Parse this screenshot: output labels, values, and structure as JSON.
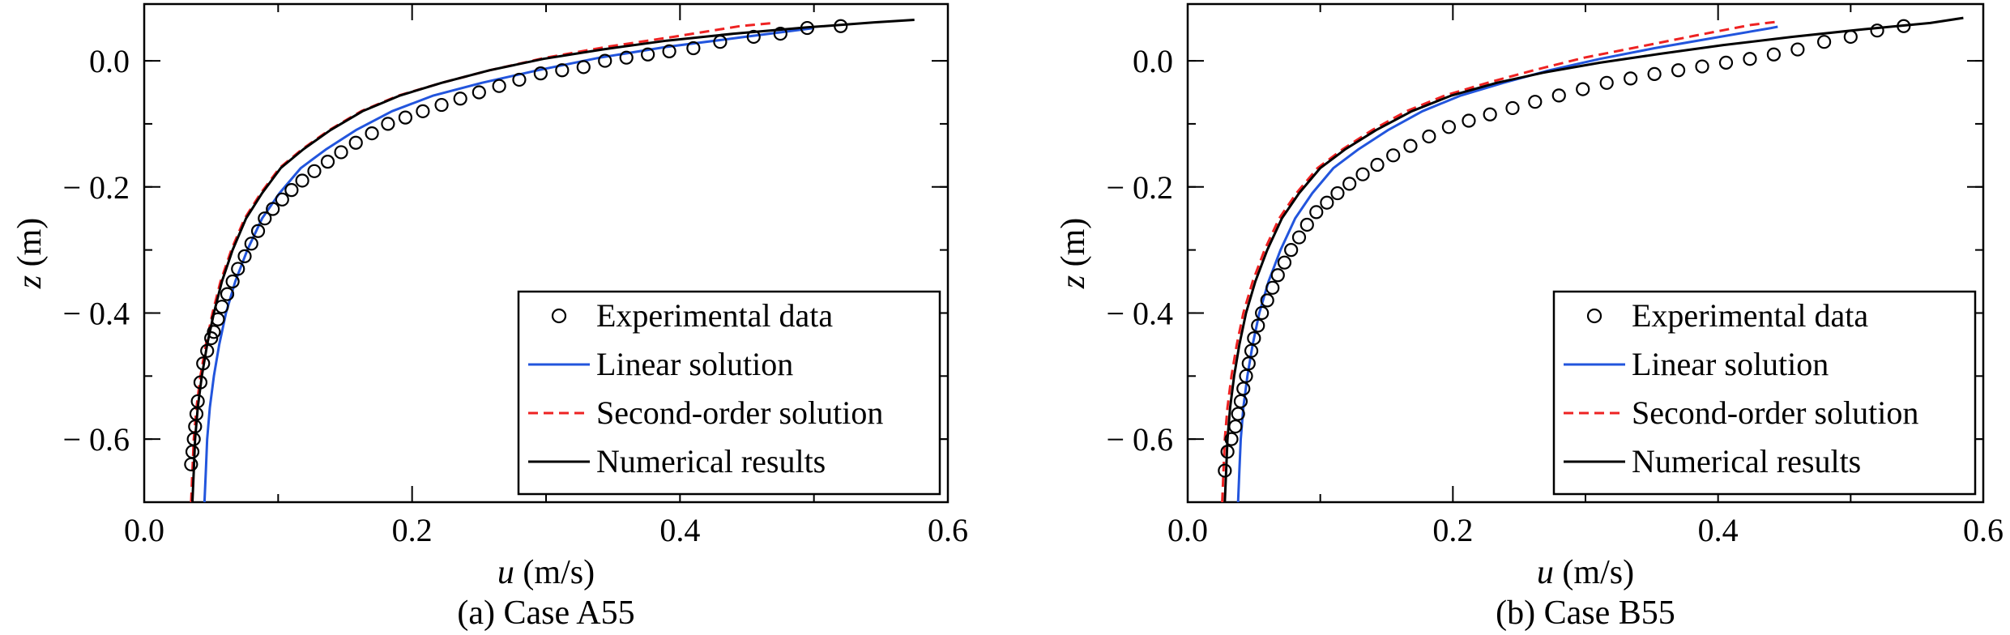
{
  "chart_data": [
    {
      "type": "line",
      "caption": "(a) Case A55",
      "xlabel": {
        "var": "u",
        "unit": " (m/s)"
      },
      "ylabel": {
        "var": "z",
        "unit": " (m)"
      },
      "xlim": [
        0.0,
        0.6
      ],
      "ylim": [
        -0.7,
        0.09
      ],
      "invert_y_labels": true,
      "x_ticks": [
        0.0,
        0.2,
        0.4,
        0.6
      ],
      "x_tick_labels": [
        "0.0",
        "0.2",
        "0.4",
        "0.6"
      ],
      "y_ticks": [
        0.0,
        -0.2,
        -0.4,
        -0.6
      ],
      "y_tick_labels": [
        "0.0",
        "− 0.2",
        "− 0.4",
        "− 0.6"
      ],
      "legend_position": "lower-right",
      "series": [
        {
          "name": "Experimental data",
          "style": "marker-circle",
          "color": "#000000",
          "x": [
            0.035,
            0.036,
            0.037,
            0.038,
            0.039,
            0.04,
            0.042,
            0.044,
            0.047,
            0.05,
            0.052,
            0.055,
            0.058,
            0.062,
            0.066,
            0.07,
            0.075,
            0.08,
            0.085,
            0.09,
            0.096,
            0.103,
            0.11,
            0.118,
            0.127,
            0.137,
            0.147,
            0.158,
            0.17,
            0.182,
            0.195,
            0.208,
            0.222,
            0.236,
            0.25,
            0.265,
            0.28,
            0.296,
            0.312,
            0.328,
            0.344,
            0.36,
            0.376,
            0.392,
            0.41,
            0.43,
            0.455,
            0.475,
            0.495,
            0.52
          ],
          "y": [
            -0.64,
            -0.62,
            -0.6,
            -0.58,
            -0.56,
            -0.54,
            -0.51,
            -0.48,
            -0.46,
            -0.44,
            -0.43,
            -0.41,
            -0.39,
            -0.37,
            -0.35,
            -0.33,
            -0.31,
            -0.29,
            -0.27,
            -0.25,
            -0.235,
            -0.22,
            -0.205,
            -0.19,
            -0.175,
            -0.16,
            -0.145,
            -0.13,
            -0.115,
            -0.1,
            -0.09,
            -0.08,
            -0.07,
            -0.06,
            -0.05,
            -0.04,
            -0.03,
            -0.02,
            -0.015,
            -0.01,
            0.0,
            0.005,
            0.01,
            0.015,
            0.02,
            0.03,
            0.038,
            0.043,
            0.052,
            0.055
          ]
        },
        {
          "name": "Linear solution",
          "style": "solid",
          "color": "#2255dd",
          "x": [
            0.045,
            0.046,
            0.047,
            0.049,
            0.052,
            0.056,
            0.061,
            0.068,
            0.077,
            0.088,
            0.101,
            0.117,
            0.136,
            0.158,
            0.185,
            0.216,
            0.252,
            0.294,
            0.34,
            0.39,
            0.445,
            0.5
          ],
          "y": [
            -0.7,
            -0.65,
            -0.6,
            -0.55,
            -0.5,
            -0.45,
            -0.4,
            -0.35,
            -0.3,
            -0.25,
            -0.21,
            -0.17,
            -0.14,
            -0.11,
            -0.08,
            -0.055,
            -0.035,
            -0.015,
            0.005,
            0.022,
            0.037,
            0.052
          ]
        },
        {
          "name": "Second-order solution",
          "style": "dashed",
          "color": "#ee2222",
          "x": [
            0.035,
            0.036,
            0.037,
            0.039,
            0.042,
            0.046,
            0.051,
            0.057,
            0.065,
            0.075,
            0.087,
            0.101,
            0.118,
            0.138,
            0.162,
            0.19,
            0.222,
            0.258,
            0.3,
            0.345,
            0.395,
            0.445,
            0.47
          ],
          "y": [
            -0.7,
            -0.65,
            -0.6,
            -0.55,
            -0.5,
            -0.45,
            -0.4,
            -0.35,
            -0.3,
            -0.25,
            -0.21,
            -0.17,
            -0.14,
            -0.11,
            -0.08,
            -0.055,
            -0.035,
            -0.015,
            0.005,
            0.022,
            0.038,
            0.055,
            0.06
          ]
        },
        {
          "name": "Numerical results",
          "style": "solid",
          "color": "#000000",
          "x": [
            0.036,
            0.037,
            0.038,
            0.04,
            0.043,
            0.047,
            0.052,
            0.058,
            0.066,
            0.076,
            0.088,
            0.102,
            0.119,
            0.139,
            0.163,
            0.191,
            0.222,
            0.258,
            0.298,
            0.342,
            0.39,
            0.44,
            0.495,
            0.545,
            0.575
          ],
          "y": [
            -0.7,
            -0.65,
            -0.6,
            -0.55,
            -0.5,
            -0.45,
            -0.4,
            -0.35,
            -0.3,
            -0.25,
            -0.21,
            -0.17,
            -0.14,
            -0.11,
            -0.08,
            -0.055,
            -0.035,
            -0.015,
            0.003,
            0.018,
            0.032,
            0.043,
            0.053,
            0.061,
            0.065
          ]
        }
      ]
    },
    {
      "type": "line",
      "caption": "(b) Case B55",
      "xlabel": {
        "var": "u",
        "unit": " (m/s)"
      },
      "ylabel": {
        "var": "z",
        "unit": " (m)"
      },
      "xlim": [
        0.0,
        0.6
      ],
      "ylim": [
        -0.7,
        0.09
      ],
      "x_ticks": [
        0.0,
        0.2,
        0.4,
        0.6
      ],
      "x_tick_labels": [
        "0.0",
        "0.2",
        "0.4",
        "0.6"
      ],
      "y_ticks": [
        0.0,
        -0.2,
        -0.4,
        -0.6
      ],
      "y_tick_labels": [
        "0.0",
        "− 0.2",
        "− 0.4",
        "− 0.6"
      ],
      "legend_position": "lower-right",
      "series": [
        {
          "name": "Experimental data",
          "style": "marker-circle",
          "color": "#000000",
          "x": [
            0.028,
            0.03,
            0.033,
            0.036,
            0.038,
            0.04,
            0.042,
            0.044,
            0.046,
            0.048,
            0.05,
            0.053,
            0.056,
            0.06,
            0.064,
            0.068,
            0.073,
            0.078,
            0.084,
            0.09,
            0.097,
            0.105,
            0.113,
            0.122,
            0.132,
            0.143,
            0.155,
            0.168,
            0.182,
            0.197,
            0.212,
            0.228,
            0.245,
            0.262,
            0.28,
            0.298,
            0.316,
            0.334,
            0.352,
            0.37,
            0.388,
            0.406,
            0.424,
            0.442,
            0.46,
            0.48,
            0.5,
            0.52,
            0.54
          ],
          "y": [
            -0.65,
            -0.62,
            -0.6,
            -0.58,
            -0.56,
            -0.54,
            -0.52,
            -0.5,
            -0.48,
            -0.46,
            -0.44,
            -0.42,
            -0.4,
            -0.38,
            -0.36,
            -0.34,
            -0.32,
            -0.3,
            -0.28,
            -0.26,
            -0.24,
            -0.225,
            -0.21,
            -0.195,
            -0.18,
            -0.165,
            -0.15,
            -0.135,
            -0.12,
            -0.105,
            -0.095,
            -0.085,
            -0.075,
            -0.065,
            -0.055,
            -0.045,
            -0.035,
            -0.028,
            -0.021,
            -0.015,
            -0.009,
            -0.003,
            0.003,
            0.01,
            0.018,
            0.03,
            0.038,
            0.048,
            0.055
          ]
        },
        {
          "name": "Linear solution",
          "style": "solid",
          "color": "#2255dd",
          "x": [
            0.038,
            0.039,
            0.04,
            0.042,
            0.045,
            0.049,
            0.054,
            0.061,
            0.07,
            0.081,
            0.094,
            0.11,
            0.129,
            0.151,
            0.177,
            0.206,
            0.238,
            0.273,
            0.311,
            0.352,
            0.396,
            0.44,
            0.445
          ],
          "y": [
            -0.7,
            -0.65,
            -0.6,
            -0.55,
            -0.5,
            -0.45,
            -0.4,
            -0.35,
            -0.3,
            -0.25,
            -0.21,
            -0.17,
            -0.14,
            -0.11,
            -0.08,
            -0.055,
            -0.035,
            -0.015,
            0.003,
            0.02,
            0.036,
            0.052,
            0.054
          ]
        },
        {
          "name": "Second-order solution",
          "style": "dashed",
          "color": "#ee2222",
          "x": [
            0.026,
            0.027,
            0.028,
            0.03,
            0.033,
            0.037,
            0.042,
            0.049,
            0.058,
            0.069,
            0.082,
            0.098,
            0.117,
            0.139,
            0.165,
            0.194,
            0.226,
            0.261,
            0.299,
            0.34,
            0.383,
            0.425,
            0.445
          ],
          "y": [
            -0.7,
            -0.65,
            -0.6,
            -0.55,
            -0.5,
            -0.45,
            -0.4,
            -0.35,
            -0.3,
            -0.25,
            -0.21,
            -0.17,
            -0.14,
            -0.11,
            -0.08,
            -0.055,
            -0.035,
            -0.015,
            0.005,
            0.022,
            0.04,
            0.057,
            0.062
          ]
        },
        {
          "name": "Numerical results",
          "style": "solid",
          "color": "#000000",
          "x": [
            0.028,
            0.029,
            0.03,
            0.032,
            0.035,
            0.039,
            0.044,
            0.051,
            0.06,
            0.071,
            0.084,
            0.1,
            0.119,
            0.142,
            0.169,
            0.199,
            0.233,
            0.27,
            0.311,
            0.356,
            0.404,
            0.456,
            0.51,
            0.56,
            0.585
          ],
          "y": [
            -0.7,
            -0.65,
            -0.6,
            -0.55,
            -0.5,
            -0.45,
            -0.4,
            -0.35,
            -0.3,
            -0.25,
            -0.21,
            -0.17,
            -0.14,
            -0.11,
            -0.08,
            -0.055,
            -0.035,
            -0.018,
            -0.003,
            0.011,
            0.025,
            0.038,
            0.05,
            0.06,
            0.068
          ]
        }
      ]
    }
  ]
}
